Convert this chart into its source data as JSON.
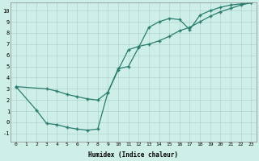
{
  "xlabel": "Humidex (Indice chaleur)",
  "bg_color": "#ceeee8",
  "grid_color": "#b0d4ce",
  "line_color": "#2a7d6e",
  "xlim": [
    -0.5,
    23.5
  ],
  "ylim": [
    -1.7,
    10.7
  ],
  "yticks": [
    -1,
    0,
    1,
    2,
    3,
    4,
    5,
    6,
    7,
    8,
    9,
    10
  ],
  "xticks": [
    0,
    1,
    2,
    3,
    4,
    5,
    6,
    7,
    8,
    9,
    10,
    11,
    12,
    13,
    14,
    15,
    16,
    17,
    18,
    19,
    20,
    21,
    22,
    23
  ],
  "curve1_x": [
    0,
    2,
    3,
    4,
    5,
    6,
    7,
    8,
    9,
    10,
    11,
    12,
    13,
    14,
    15,
    16,
    17,
    18,
    19,
    20,
    21,
    22,
    23
  ],
  "curve1_y": [
    3.2,
    1.1,
    -0.1,
    -0.2,
    -0.45,
    -0.6,
    -0.7,
    -0.6,
    2.7,
    4.8,
    5.0,
    6.7,
    8.5,
    9.0,
    9.3,
    9.2,
    8.3,
    9.6,
    10.0,
    10.3,
    10.5,
    10.6,
    10.7
  ],
  "curve2_x": [
    0,
    3,
    4,
    5,
    6,
    7,
    8,
    9,
    10,
    11,
    12,
    13,
    14,
    15,
    16,
    17,
    18,
    19,
    20,
    21,
    22,
    23
  ],
  "curve2_y": [
    3.2,
    3.0,
    2.8,
    2.5,
    2.3,
    2.1,
    2.0,
    2.7,
    4.7,
    6.5,
    6.8,
    7.0,
    7.3,
    7.7,
    8.2,
    8.5,
    9.0,
    9.5,
    9.9,
    10.2,
    10.5,
    10.7
  ]
}
